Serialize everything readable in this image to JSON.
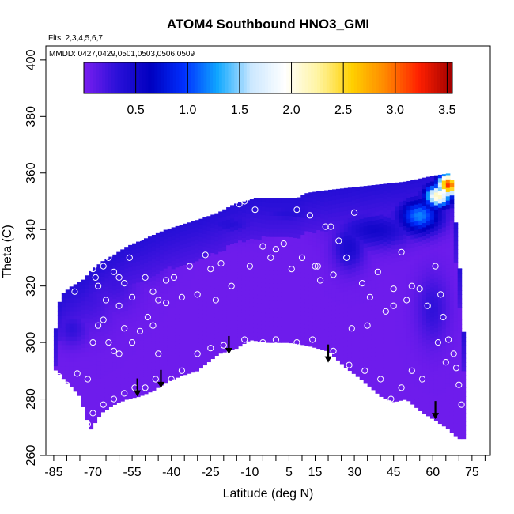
{
  "chart_data": {
    "type": "heatmap",
    "title": "ATOM4 Southbound HNO3_GMI",
    "flights_note": "Flts: 2,3,4,5,6,7",
    "dates_note": "MMDD: 0427,0429,0501,0503,0506,0509",
    "xlabel": "Latitude (deg N)",
    "ylabel": "Theta (C)",
    "xlim": [
      -88,
      82
    ],
    "ylim": [
      260,
      405
    ],
    "x_ticks": [
      -85,
      -70,
      -55,
      -40,
      -25,
      -10,
      5,
      15,
      30,
      45,
      60,
      75
    ],
    "x_tick_labels": [
      "-85",
      "-70",
      "-55",
      "-40",
      "-25",
      "-10",
      "5",
      "15",
      "30",
      "45",
      "60",
      "75"
    ],
    "x_minor_ticks": [
      -80,
      -75,
      -65,
      -60,
      -50,
      -45,
      -35,
      -30,
      -20,
      -15,
      -5,
      0,
      10,
      20,
      25,
      35,
      40,
      50,
      55,
      65,
      70,
      80
    ],
    "y_ticks": [
      260,
      280,
      300,
      320,
      340,
      360,
      380,
      400
    ],
    "y_tick_labels": [
      "260",
      "280",
      "300",
      "320",
      "340",
      "360",
      "380",
      "400"
    ],
    "colorbar": {
      "range": [
        0,
        3.55
      ],
      "ticks": [
        0.5,
        1.0,
        1.5,
        2.0,
        2.5,
        3.0,
        3.5
      ],
      "tick_labels": [
        "0.5",
        "1.0",
        "1.5",
        "2.0",
        "2.5",
        "3.0",
        "3.5"
      ],
      "colors": [
        "#7a1ef0",
        "#2a10d8",
        "#0000c0",
        "#0030ff",
        "#10a8ff",
        "#cce8ff",
        "#ffffff",
        "#fff4a0",
        "#ffd000",
        "#ff8800",
        "#ff2000",
        "#a00000"
      ]
    },
    "lower_boundary": [
      [
        -85,
        291
      ],
      [
        -80,
        286
      ],
      [
        -75,
        281
      ],
      [
        -71,
        269
      ],
      [
        -67,
        275
      ],
      [
        -62,
        278
      ],
      [
        -57,
        280
      ],
      [
        -52,
        281
      ],
      [
        -47,
        283
      ],
      [
        -42,
        286
      ],
      [
        -37,
        288
      ],
      [
        -30,
        290
      ],
      [
        -22,
        296
      ],
      [
        -15,
        298
      ],
      [
        -10,
        301
      ],
      [
        -3,
        300
      ],
      [
        5,
        300
      ],
      [
        12,
        299
      ],
      [
        20,
        297
      ],
      [
        27,
        291
      ],
      [
        34,
        286
      ],
      [
        40,
        281
      ],
      [
        45,
        279
      ],
      [
        50,
        280
      ],
      [
        55,
        276
      ],
      [
        60,
        273
      ],
      [
        65,
        270
      ],
      [
        70,
        266
      ],
      [
        72,
        266
      ]
    ],
    "upper_boundary": [
      [
        -85,
        290
      ],
      [
        -84,
        310
      ],
      [
        -82,
        317
      ],
      [
        -78,
        320
      ],
      [
        -74,
        322
      ],
      [
        -70,
        326
      ],
      [
        -66,
        329
      ],
      [
        -62,
        331
      ],
      [
        -57,
        334
      ],
      [
        -52,
        336
      ],
      [
        -47,
        338
      ],
      [
        -42,
        340
      ],
      [
        -35,
        342
      ],
      [
        -28,
        344
      ],
      [
        -22,
        346
      ],
      [
        -16,
        349
      ],
      [
        -12,
        350
      ],
      [
        -8,
        351
      ],
      [
        0,
        351
      ],
      [
        8,
        351
      ],
      [
        12,
        353
      ],
      [
        20,
        354
      ],
      [
        30,
        355
      ],
      [
        40,
        356
      ],
      [
        50,
        357
      ],
      [
        60,
        359
      ],
      [
        67,
        360
      ],
      [
        70,
        330
      ],
      [
        72,
        300
      ]
    ],
    "features": [
      {
        "x": -72,
        "y": 317,
        "v": 0.25,
        "sx": 10,
        "sy": 12
      },
      {
        "x": -62,
        "y": 322,
        "v": 0.25,
        "sx": 9,
        "sy": 10
      },
      {
        "x": -50,
        "y": 330,
        "v": 0.25,
        "sx": 8,
        "sy": 8
      },
      {
        "x": -18,
        "y": 342,
        "v": 0.35,
        "sx": 12,
        "sy": 4
      },
      {
        "x": 5,
        "y": 346,
        "v": 0.35,
        "sx": 15,
        "sy": 4
      },
      {
        "x": 28,
        "y": 334,
        "v": 0.45,
        "sx": 6,
        "sy": 8
      },
      {
        "x": 38,
        "y": 340,
        "v": 0.5,
        "sx": 14,
        "sy": 6
      },
      {
        "x": 55,
        "y": 345,
        "v": 1.2,
        "sx": 8,
        "sy": 6
      },
      {
        "x": 62,
        "y": 352,
        "v": 2.2,
        "sx": 5,
        "sy": 4
      },
      {
        "x": 66,
        "y": 356,
        "v": 3.2,
        "sx": 4,
        "sy": 4
      },
      {
        "x": 60,
        "y": 312,
        "v": 0.3,
        "sx": 6,
        "sy": 12
      },
      {
        "x": -78,
        "y": 305,
        "v": 0.3,
        "sx": 6,
        "sy": 6
      }
    ],
    "arrows": [
      [
        -53,
        287
      ],
      [
        -44,
        290
      ],
      [
        -18,
        302
      ],
      [
        20,
        299
      ],
      [
        61,
        279
      ]
    ],
    "points": [
      [
        -84,
        317
      ],
      [
        -77,
        318
      ],
      [
        -73,
        331
      ],
      [
        -70,
        326
      ],
      [
        -69,
        323
      ],
      [
        -68,
        320
      ],
      [
        -66,
        327
      ],
      [
        -64,
        330
      ],
      [
        -62,
        325
      ],
      [
        -60,
        323
      ],
      [
        -58,
        321
      ],
      [
        -56,
        330
      ],
      [
        -52,
        337
      ],
      [
        -50,
        323
      ],
      [
        -47,
        318
      ],
      [
        -45,
        315
      ],
      [
        -42,
        314
      ],
      [
        -39,
        323
      ],
      [
        -36,
        316
      ],
      [
        -33,
        327
      ],
      [
        -30,
        317
      ],
      [
        -27,
        331
      ],
      [
        -23,
        315
      ],
      [
        -21,
        328
      ],
      [
        -17,
        320
      ],
      [
        -14,
        349
      ],
      [
        -12,
        350
      ],
      [
        -8,
        347
      ],
      [
        -5,
        334
      ],
      [
        -2,
        330
      ],
      [
        0,
        333
      ],
      [
        3,
        335
      ],
      [
        6,
        326
      ],
      [
        8,
        347
      ],
      [
        10,
        330
      ],
      [
        13,
        345
      ],
      [
        15,
        327
      ],
      [
        17,
        322
      ],
      [
        19,
        341
      ],
      [
        21,
        341
      ],
      [
        22,
        324
      ],
      [
        24,
        336
      ],
      [
        27,
        330
      ],
      [
        30,
        346
      ],
      [
        33,
        321
      ],
      [
        36,
        316
      ],
      [
        39,
        325
      ],
      [
        42,
        311
      ],
      [
        45,
        313
      ],
      [
        48,
        332
      ],
      [
        50,
        315
      ],
      [
        52,
        320
      ],
      [
        55,
        319
      ],
      [
        58,
        313
      ],
      [
        61,
        327
      ],
      [
        63,
        317
      ],
      [
        64,
        309
      ],
      [
        66,
        301
      ],
      [
        68,
        296
      ],
      [
        69,
        291
      ],
      [
        70,
        285
      ],
      [
        71,
        278
      ],
      [
        -83,
        288
      ],
      [
        -80,
        285
      ],
      [
        -76,
        289
      ],
      [
        -72,
        287
      ],
      [
        -70,
        300
      ],
      [
        -68,
        306
      ],
      [
        -66,
        308
      ],
      [
        -64,
        300
      ],
      [
        -62,
        297
      ],
      [
        -60,
        296
      ],
      [
        -58,
        305
      ],
      [
        -55,
        300
      ],
      [
        -52,
        304
      ],
      [
        -49,
        309
      ],
      [
        -47,
        306
      ],
      [
        -45,
        296
      ],
      [
        -42,
        284
      ],
      [
        -40,
        287
      ],
      [
        -36,
        290
      ],
      [
        -30,
        296
      ],
      [
        -25,
        298
      ],
      [
        -20,
        299
      ],
      [
        -12,
        301
      ],
      [
        -5,
        300
      ],
      [
        0,
        301
      ],
      [
        8,
        300
      ],
      [
        14,
        301
      ],
      [
        22,
        297
      ],
      [
        28,
        292
      ],
      [
        34,
        290
      ],
      [
        40,
        287
      ],
      [
        44,
        280
      ],
      [
        48,
        284
      ],
      [
        52,
        290
      ],
      [
        56,
        287
      ],
      [
        62,
        300
      ],
      [
        65,
        293
      ],
      [
        -70,
        275
      ],
      [
        -66,
        278
      ],
      [
        -62,
        280
      ],
      [
        -58,
        282
      ],
      [
        -54,
        284
      ],
      [
        -50,
        284
      ],
      [
        -46,
        287
      ],
      [
        -72,
        271
      ],
      [
        -55,
        316
      ],
      [
        -60,
        313
      ],
      [
        -65,
        315
      ],
      [
        -42,
        322
      ],
      [
        -25,
        326
      ],
      [
        -10,
        327
      ],
      [
        16,
        327
      ],
      [
        29,
        305
      ],
      [
        35,
        306
      ],
      [
        45,
        319
      ]
    ]
  }
}
